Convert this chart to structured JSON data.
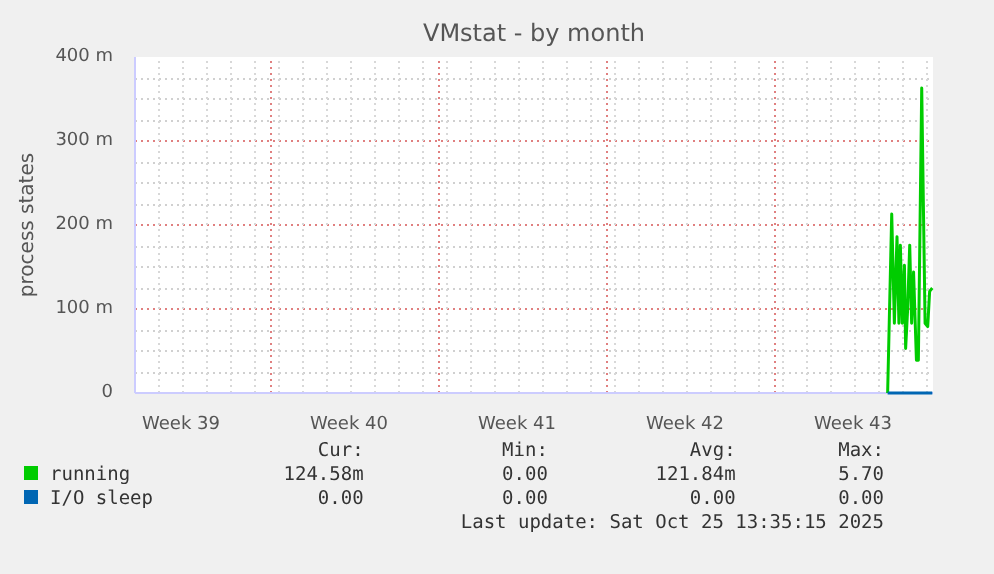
{
  "chart_data": {
    "type": "line",
    "title": "VMstat - by month",
    "ylabel": "process states",
    "x": [
      "2025-10-24T16:38",
      "2025-10-24T20:43",
      "2025-10-24T23:22",
      "2025-10-25T02:00",
      "2025-10-25T03:55",
      "2025-10-25T05:22",
      "2025-10-25T07:17",
      "2025-10-25T09:26",
      "2025-10-25T10:38",
      "2025-10-25T12:34",
      "2025-10-25T14:43",
      "2025-10-25T16:38",
      "2025-10-25T18:34",
      "2025-10-25T21:26",
      "2025-10-25T23:22",
      "2025-10-26T02:43",
      "2025-10-26T06:05",
      "2025-10-26T08:43",
      "2025-10-26T10:38",
      "2025-10-26T13:17"
    ],
    "series": [
      {
        "name": "running",
        "color": "#00cc00",
        "values": [
          0,
          213,
          83,
          186,
          83,
          176,
          83,
          152,
          53,
          98,
          176,
          83,
          144,
          39,
          39,
          363,
          83,
          79,
          121,
          125
        ]
      },
      {
        "name": "I/O sleep",
        "color": "#0066b3",
        "values": [
          0,
          0,
          0,
          0,
          0,
          0,
          0,
          0,
          0,
          0,
          0,
          0,
          0,
          0,
          0,
          0,
          0,
          0,
          0,
          0
        ]
      }
    ],
    "xlim": [
      "2025-09-23T08:00",
      "2025-10-26T14:00"
    ],
    "xticks": [
      {
        "value": "2025-09-25T06:00",
        "label": "Week 39"
      },
      {
        "value": "2025-10-02T06:00",
        "label": "Week 40"
      },
      {
        "value": "2025-10-09T06:00",
        "label": "Week 41"
      },
      {
        "value": "2025-10-16T06:00",
        "label": "Week 42"
      },
      {
        "value": "2025-10-23T06:00",
        "label": "Week 43"
      },
      {
        "value": "2025-09-29",
        "label": null
      },
      {
        "value": "2025-10-06",
        "label": null
      },
      {
        "value": "2025-10-13",
        "label": null
      },
      {
        "value": "2025-10-20",
        "label": null
      }
    ],
    "ylim": [
      0,
      400
    ],
    "yticks": [
      0,
      {
        "value": 100,
        "label": "100 m"
      },
      {
        "value": 200,
        "label": "200 m"
      },
      {
        "value": 300,
        "label": "300 m"
      },
      {
        "value": 400,
        "label": "400 m"
      }
    ],
    "grid": true,
    "legend": "bottom",
    "marker": "none",
    "line_style": "solid",
    "annotations": [
      "Cur:",
      "Min:",
      "Avg:",
      "Max:",
      "124.58m",
      "0.00",
      "121.84m",
      "5.70",
      "0.00",
      "0.00",
      "0.00",
      "0.00",
      "Last update: Sat Oct 25 13:35:15 2025"
    ]
  }
}
